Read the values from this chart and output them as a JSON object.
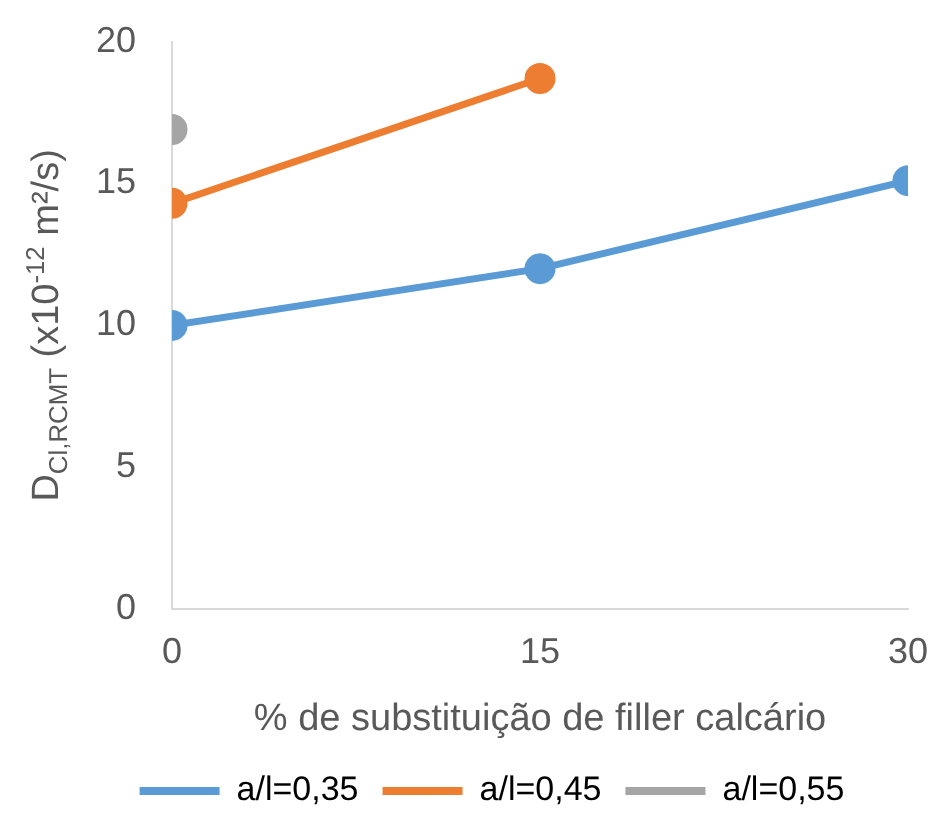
{
  "chart_data": {
    "type": "line",
    "xlabel": "% de substituição de filler calcário",
    "ylabel": "D$_{Cl,RCMT}$ (x10$^{-12}$ m²/s)",
    "xlim": [
      0,
      30
    ],
    "xticks": [
      0,
      15,
      30
    ],
    "ylim": [
      0,
      20
    ],
    "yticks": [
      0,
      5,
      10,
      15,
      20
    ],
    "grid": false,
    "legend": "bottom",
    "marker": "circle",
    "line_style": "solid",
    "series": [
      {
        "name": "a/l=0,35",
        "color": "#5b9bd5",
        "x": [
          0,
          15,
          30
        ],
        "values": [
          10,
          12,
          15.1
        ]
      },
      {
        "name": "a/l=0,45",
        "color": "#ed7d31",
        "x": [
          0,
          15
        ],
        "values": [
          14.3,
          18.7
        ]
      },
      {
        "name": "a/l=0,55",
        "color": "#a5a5a5",
        "x": [
          0
        ],
        "values": [
          16.9
        ]
      }
    ]
  }
}
